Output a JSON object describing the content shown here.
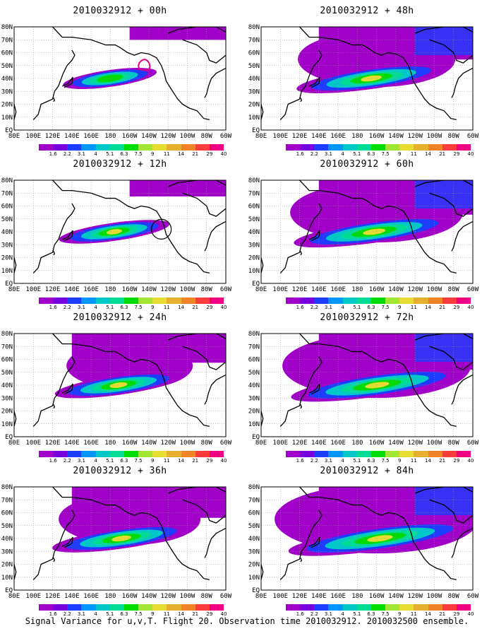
{
  "panels": [
    {
      "title": "2010032912 + 00h",
      "intensity": 0.15,
      "markers": [
        "storm-outline"
      ]
    },
    {
      "title": "2010032912 + 48h",
      "intensity": 0.65,
      "markers": []
    },
    {
      "title": "2010032912 + 12h",
      "intensity": 0.3,
      "markers": [
        "circle"
      ]
    },
    {
      "title": "2010032912 + 60h",
      "intensity": 0.75,
      "markers": []
    },
    {
      "title": "2010032912 + 24h",
      "intensity": 0.45,
      "markers": []
    },
    {
      "title": "2010032912 + 72h",
      "intensity": 0.85,
      "markers": []
    },
    {
      "title": "2010032912 + 36h",
      "intensity": 0.55,
      "markers": []
    },
    {
      "title": "2010032912 + 84h",
      "intensity": 0.95,
      "markers": []
    }
  ],
  "axes": {
    "lat_labels": [
      "EQ",
      "10N",
      "20N",
      "30N",
      "40N",
      "50N",
      "60N",
      "70N",
      "80N"
    ],
    "lon_labels": [
      "80E",
      "100E",
      "120E",
      "140E",
      "160E",
      "180",
      "160W",
      "140W",
      "120W",
      "100W",
      "80W",
      "60W"
    ]
  },
  "colorbar": {
    "labels": [
      "1.6",
      "2.2",
      "3.1",
      "4",
      "5.1",
      "6.3",
      "7.5",
      "9",
      "11",
      "14",
      "21",
      "29",
      "40"
    ],
    "colors": [
      "#a000c8",
      "#7800dc",
      "#1e3cff",
      "#0096ff",
      "#00c8c8",
      "#00dc96",
      "#00dc00",
      "#a0e632",
      "#e6dc32",
      "#e6af2d",
      "#f08228",
      "#fa3c3c",
      "#f00082"
    ]
  },
  "footer": "Signal Variance for u,v,T. Flight 20. Observation time 2010032912. 2010032500 ensemble."
}
